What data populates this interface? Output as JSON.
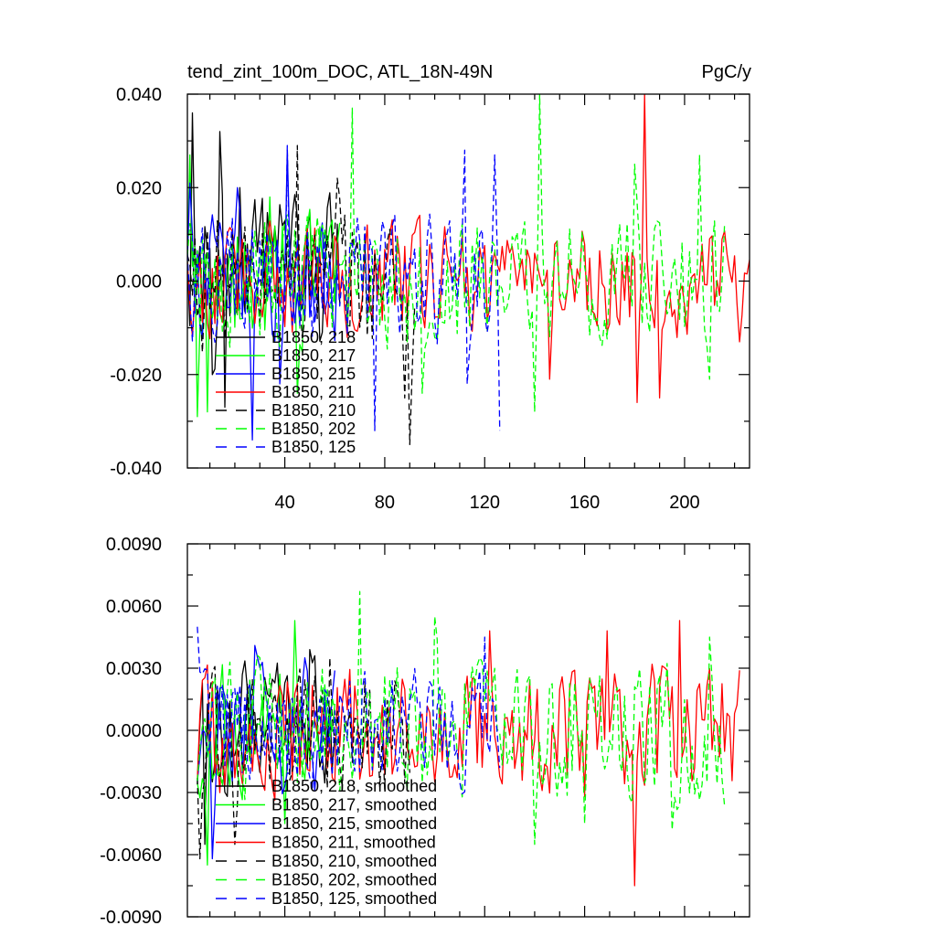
{
  "title": "tend_zint_100m_DOC, ATL_18N-49N",
  "units": "PgC/y",
  "colors": {
    "black": "#000000",
    "green": "#00ff00",
    "blue": "#0000ff",
    "red": "#ff0000"
  },
  "chart_data": [
    {
      "type": "line",
      "title": "tend_zint_100m_DOC, ATL_18N-49N",
      "units": "PgC/y",
      "xlim": [
        1,
        226
      ],
      "ylim": [
        -0.04,
        0.04
      ],
      "xticks": [
        40,
        80,
        120,
        160,
        200
      ],
      "xtick_labels": [
        "40",
        "80",
        "120",
        "160",
        "200"
      ],
      "yticks": [
        -0.04,
        -0.02,
        0,
        0.02,
        0.04
      ],
      "ytick_labels": [
        "-0.040",
        "-0.020",
        "0.000",
        "0.020",
        "0.040"
      ],
      "grid": false,
      "legend_position": "bottom-left",
      "series": [
        {
          "name": "B1850, 218",
          "color": "#000000",
          "dash": "solid",
          "x_start": 1,
          "x_end": 62,
          "amp": 0.011,
          "spikes": [
            [
              3,
              0.036
            ],
            [
              14,
              0.032
            ],
            [
              16,
              -0.027
            ],
            [
              22,
              0.02
            ],
            [
              11,
              -0.02
            ]
          ]
        },
        {
          "name": "B1850, 217",
          "color": "#00ff00",
          "dash": "solid",
          "x_start": 1,
          "x_end": 62,
          "amp": 0.009,
          "spikes": [
            [
              2,
              0.027
            ],
            [
              5,
              -0.029
            ],
            [
              9,
              -0.028
            ],
            [
              34,
              0.018
            ],
            [
              45,
              -0.024
            ]
          ]
        },
        {
          "name": "B1850, 215",
          "color": "#0000ff",
          "dash": "solid",
          "x_start": 1,
          "x_end": 62,
          "amp": 0.009,
          "spikes": [
            [
              2,
              0.021
            ],
            [
              21,
              0.02
            ],
            [
              27,
              -0.034
            ],
            [
              41,
              0.028
            ],
            [
              38,
              -0.022
            ]
          ]
        },
        {
          "name": "B1850, 211",
          "color": "#ff0000",
          "dash": "solid",
          "x_start": 1,
          "x_end": 226,
          "amp": 0.008,
          "spikes": [
            [
              184,
              0.04
            ],
            [
              222,
              0.024
            ],
            [
              146,
              -0.021
            ],
            [
              181,
              -0.026
            ],
            [
              190,
              -0.025
            ],
            [
              222,
              -0.013
            ]
          ]
        },
        {
          "name": "B1850, 210",
          "color": "#000000",
          "dash": "dash",
          "x_start": 1,
          "x_end": 92,
          "amp": 0.01,
          "spikes": [
            [
              45,
              0.029
            ],
            [
              61,
              0.022
            ],
            [
              90,
              -0.035
            ],
            [
              88,
              -0.025
            ]
          ]
        },
        {
          "name": "B1850, 202",
          "color": "#00ff00",
          "dash": "dash",
          "x_start": 1,
          "x_end": 216,
          "amp": 0.009,
          "spikes": [
            [
              67,
              0.037
            ],
            [
              142,
              0.04
            ],
            [
              140,
              -0.028
            ],
            [
              206,
              0.027
            ],
            [
              180,
              0.025
            ],
            [
              210,
              -0.021
            ],
            [
              95,
              -0.024
            ]
          ]
        },
        {
          "name": "B1850, 125",
          "color": "#0000ff",
          "dash": "dash",
          "x_start": 1,
          "x_end": 126,
          "amp": 0.009,
          "spikes": [
            [
              41,
              0.029
            ],
            [
              112,
              0.028
            ],
            [
              124,
              0.027
            ],
            [
              126,
              -0.032
            ],
            [
              76,
              -0.032
            ],
            [
              113,
              -0.022
            ]
          ]
        }
      ]
    },
    {
      "type": "line",
      "xlim": [
        1,
        226
      ],
      "ylim": [
        -0.009,
        0.009
      ],
      "xticks": [
        40,
        80,
        120,
        160,
        200
      ],
      "xtick_labels": [],
      "yticks": [
        -0.009,
        -0.006,
        -0.003,
        0,
        0.003,
        0.006,
        0.009
      ],
      "ytick_labels": [
        "-0.0090",
        "-0.0060",
        "-0.0030",
        "0.0000",
        "0.0030",
        "0.0060",
        "0.0090"
      ],
      "grid": false,
      "legend_position": "bottom-left",
      "series": [
        {
          "name": "B1850, 218, smoothed",
          "color": "#000000",
          "dash": "solid",
          "x_start": 5,
          "x_end": 60,
          "amp": 0.002,
          "spikes": [
            [
              50,
              0.0039
            ],
            [
              52,
              0.0036
            ],
            [
              8,
              -0.0055
            ]
          ]
        },
        {
          "name": "B1850, 217, smoothed",
          "color": "#00ff00",
          "dash": "solid",
          "x_start": 5,
          "x_end": 60,
          "amp": 0.002,
          "spikes": [
            [
              44,
              0.0053
            ],
            [
              9,
              -0.0065
            ],
            [
              40,
              -0.0045
            ]
          ]
        },
        {
          "name": "B1850, 215, smoothed",
          "color": "#0000ff",
          "dash": "solid",
          "x_start": 5,
          "x_end": 60,
          "amp": 0.002,
          "spikes": [
            [
              11,
              -0.0062
            ],
            [
              28,
              0.0041
            ],
            [
              48,
              0.0035
            ]
          ]
        },
        {
          "name": "B1850, 211, smoothed",
          "color": "#ff0000",
          "dash": "solid",
          "x_start": 5,
          "x_end": 222,
          "amp": 0.002,
          "spikes": [
            [
              122,
              0.0048
            ],
            [
              180,
              -0.0075
            ],
            [
              198,
              0.0053
            ],
            [
              169,
              0.0048
            ],
            [
              160,
              -0.0032
            ],
            [
              222,
              0.0029
            ]
          ]
        },
        {
          "name": "B1850, 210, smoothed",
          "color": "#000000",
          "dash": "dash",
          "x_start": 5,
          "x_end": 90,
          "amp": 0.002,
          "spikes": [
            [
              6,
              -0.0062
            ],
            [
              58,
              0.0035
            ],
            [
              20,
              -0.0055
            ]
          ]
        },
        {
          "name": "B1850, 202, smoothed",
          "color": "#00ff00",
          "dash": "dash",
          "x_start": 5,
          "x_end": 216,
          "amp": 0.0022,
          "spikes": [
            [
              70,
              0.0067
            ],
            [
              100,
              0.0055
            ],
            [
              140,
              -0.0055
            ],
            [
              195,
              -0.0048
            ],
            [
              210,
              0.0045
            ],
            [
              160,
              -0.0045
            ]
          ]
        },
        {
          "name": "B1850, 125, smoothed",
          "color": "#0000ff",
          "dash": "dash",
          "x_start": 5,
          "x_end": 126,
          "amp": 0.0018,
          "spikes": [
            [
              5,
              0.005
            ],
            [
              120,
              0.0045
            ],
            [
              110,
              -0.0025
            ]
          ]
        }
      ]
    }
  ]
}
